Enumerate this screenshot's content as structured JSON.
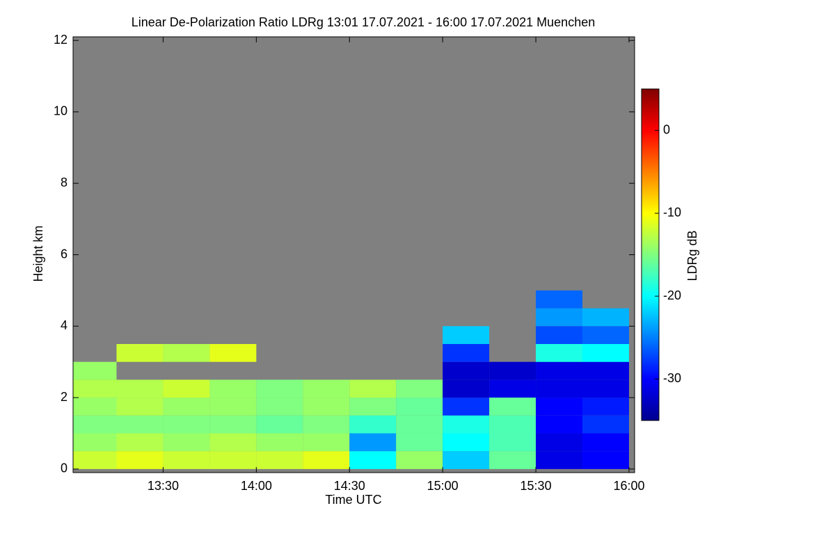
{
  "chart_data": {
    "type": "heatmap",
    "title": "Linear De-Polarization Ratio LDRg   13:01 17.07.2021 - 16:00 17.07.2021 Muenchen",
    "xlabel": "Time UTC",
    "ylabel": "Height km",
    "colorbar_label": "LDRg dB",
    "background_color": "#808080",
    "colormap": "jet",
    "xlim": [
      13.0167,
      16.03
    ],
    "ylim": [
      -0.1,
      12.1
    ],
    "xticks": [
      {
        "value": 13.5,
        "label": "13:30"
      },
      {
        "value": 14.0,
        "label": "14:00"
      },
      {
        "value": 14.5,
        "label": "14:30"
      },
      {
        "value": 15.0,
        "label": "15:00"
      },
      {
        "value": 15.5,
        "label": "15:30"
      },
      {
        "value": 16.0,
        "label": "16:00"
      }
    ],
    "yticks": [
      0,
      2,
      4,
      6,
      8,
      10,
      12
    ],
    "clim": [
      -35,
      5
    ],
    "cticks": [
      0,
      -10,
      -20,
      -30
    ],
    "x": [
      13.125,
      13.375,
      13.625,
      13.875,
      14.125,
      14.375,
      14.625,
      14.875,
      15.125,
      15.375,
      15.625,
      15.875
    ],
    "y": [
      0.25,
      0.75,
      1.25,
      1.75,
      2.25,
      2.75,
      3.25,
      3.75,
      4.25,
      4.75
    ],
    "z": [
      [
        -12,
        -11,
        -12,
        -12,
        -12,
        -11,
        -20,
        -14,
        -22,
        -16,
        -31,
        -30
      ],
      [
        -14,
        -13,
        -14,
        -13,
        -14,
        -14,
        -24,
        -16,
        -20,
        -17,
        -31,
        -30
      ],
      [
        -15,
        -15,
        -15,
        -15,
        -16,
        -15,
        -18,
        -16,
        -19,
        -17,
        -30,
        -28
      ],
      [
        -14,
        -13,
        -14,
        -14,
        -15,
        -14,
        -15,
        -16,
        -28,
        -16,
        -30,
        -29
      ],
      [
        -13,
        -13,
        -12,
        -14,
        -15,
        -14,
        -13,
        -15,
        -32,
        -31,
        -31,
        -31
      ],
      [
        -14,
        null,
        null,
        null,
        null,
        null,
        null,
        null,
        -32,
        -32,
        -31,
        -31
      ],
      [
        null,
        -12,
        -13,
        -11,
        null,
        null,
        null,
        null,
        -28,
        null,
        -19,
        -20
      ],
      [
        null,
        null,
        null,
        null,
        null,
        null,
        null,
        null,
        -22,
        null,
        -27,
        -26
      ],
      [
        null,
        null,
        null,
        null,
        null,
        null,
        null,
        null,
        null,
        null,
        -24,
        -23
      ],
      [
        null,
        null,
        null,
        null,
        null,
        null,
        null,
        null,
        null,
        null,
        -26,
        null
      ]
    ]
  }
}
